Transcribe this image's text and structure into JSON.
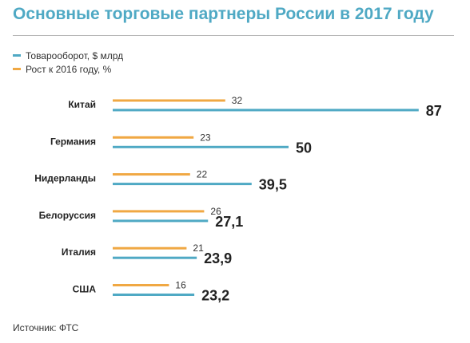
{
  "title": "Основные торговые партнеры России в 2017 году",
  "source": "Источник: ФТС",
  "legend": [
    {
      "label": "Товарооборот, $ млрд",
      "color": "#4fa9c4"
    },
    {
      "label": "Рост к 2016 году, %",
      "color": "#f0a843"
    }
  ],
  "chart_data": {
    "type": "bar",
    "orientation": "horizontal",
    "title": "Основные торговые партнеры России в 2017 году",
    "categories": [
      "Китай",
      "Германия",
      "Нидерланды",
      "Белоруссия",
      "Италия",
      "США"
    ],
    "series": [
      {
        "name": "Рост к 2016 году, %",
        "color": "#f0a843",
        "values": [
          32,
          23,
          22,
          26,
          21,
          16
        ],
        "labels": [
          "32",
          "23",
          "22",
          "26",
          "21",
          "16"
        ]
      },
      {
        "name": "Товарооборот, $ млрд",
        "color": "#4fa9c4",
        "values": [
          87,
          50,
          39.5,
          27.1,
          23.9,
          23.2
        ],
        "labels": [
          "87",
          "50",
          "39,5",
          "27,1",
          "23,9",
          "23,2"
        ]
      }
    ],
    "grid": false,
    "legend_position": "top-left"
  }
}
